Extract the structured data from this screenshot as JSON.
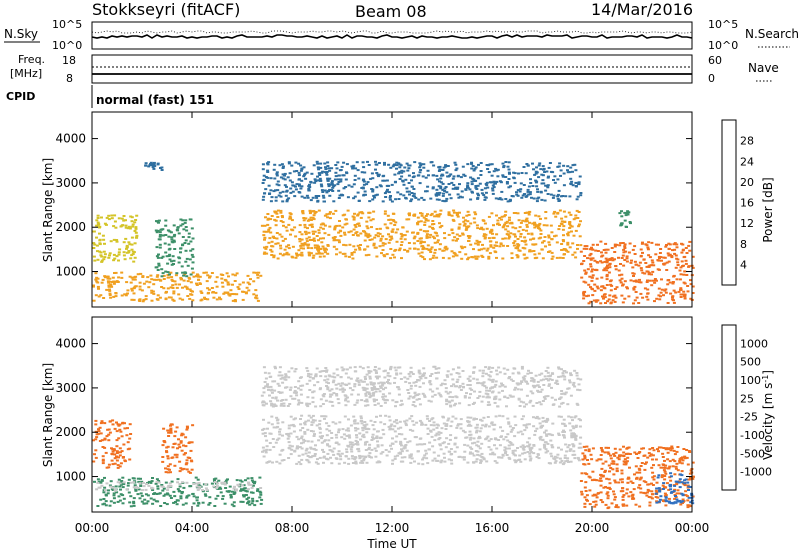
{
  "header": {
    "station": "Stokkseyri (fitACF)",
    "beam": "Beam 08",
    "date": "14/Mar/2016"
  },
  "nsky_panel": {
    "left_label": "N.Sky",
    "left_ticks": [
      "10^5",
      "10^0"
    ],
    "right_ticks": [
      "10^5",
      "10^0"
    ],
    "right_label": "N.Search"
  },
  "freq_panel": {
    "label_line1": "Freq.",
    "label_line2": "[MHz]",
    "left_ticks": [
      "18",
      "8"
    ],
    "right_ticks": [
      "60",
      "0"
    ],
    "right_label": "Nave"
  },
  "cpid": {
    "label": "CPID",
    "value": "normal (fast) 151"
  },
  "chart_data": [
    {
      "type": "heatmap",
      "quantity": "Power",
      "ylabel": "Slant Range [km]",
      "ylim": [
        200,
        4600
      ],
      "yticks": [
        "1000",
        "2000",
        "3000",
        "4000"
      ],
      "xlim": [
        "00:00",
        "24:00"
      ],
      "colorbar": {
        "label": "Power [dB]",
        "ticks": [
          "4",
          "8",
          "12",
          "16",
          "20",
          "24",
          "28"
        ],
        "colors": [
          "#1010f0",
          "#2a4fd0",
          "#2f6fa0",
          "#3c8f68",
          "#4aa848",
          "#d4c428",
          "#f0a020",
          "#f07020",
          "#e83018",
          "#e00000"
        ]
      },
      "echo_regions": [
        {
          "start": "00:00",
          "end": "06:45",
          "range_low": 350,
          "range_high": 1000,
          "value": 20
        },
        {
          "start": "00:00",
          "end": "01:45",
          "range_low": 1200,
          "range_high": 2300,
          "value": 16
        },
        {
          "start": "02:30",
          "end": "04:00",
          "range_low": 900,
          "range_high": 2200,
          "value": 12
        },
        {
          "start": "02:00",
          "end": "02:45",
          "range_low": 3300,
          "range_high": 3500,
          "value": 8
        },
        {
          "start": "06:45",
          "end": "19:30",
          "range_low": 1300,
          "range_high": 2400,
          "value": 20
        },
        {
          "start": "06:45",
          "end": "19:30",
          "range_low": 2600,
          "range_high": 3500,
          "value": 8
        },
        {
          "start": "19:30",
          "end": "24:00",
          "range_low": 300,
          "range_high": 1700,
          "value": 24
        },
        {
          "start": "21:00",
          "end": "21:30",
          "range_low": 2000,
          "range_high": 2400,
          "value": 12
        }
      ]
    },
    {
      "type": "heatmap",
      "quantity": "Velocity",
      "ylabel": "Slant Range [km]",
      "ylim": [
        200,
        4600
      ],
      "yticks": [
        "1000",
        "2000",
        "3000",
        "4000"
      ],
      "xlabel": "Time UT",
      "xticks": [
        "00:00",
        "04:00",
        "08:00",
        "12:00",
        "16:00",
        "20:00",
        "00:00"
      ],
      "colorbar": {
        "label": "Velocity [m s^-1]",
        "ticks": [
          "1000",
          "500",
          "100",
          "25",
          "-25",
          "-100",
          "-500",
          "-1000"
        ],
        "colors": [
          "#2040b0",
          "#3070c0",
          "#3c8f68",
          "#58c040",
          "#c8c8c8",
          "#c8c8c8",
          "#f0a020",
          "#f07020",
          "#e83018",
          "#e00000"
        ]
      },
      "echo_regions": [
        {
          "start": "00:00",
          "end": "06:45",
          "range_low": 350,
          "range_high": 1000,
          "value": 80
        },
        {
          "start": "00:00",
          "end": "06:45",
          "range_low": 700,
          "range_high": 900,
          "value": 0
        },
        {
          "start": "00:00",
          "end": "01:30",
          "range_low": 1200,
          "range_high": 2300,
          "value": -300
        },
        {
          "start": "02:45",
          "end": "04:00",
          "range_low": 1100,
          "range_high": 2200,
          "value": -300
        },
        {
          "start": "06:45",
          "end": "19:30",
          "range_low": 1300,
          "range_high": 2400,
          "value": 0
        },
        {
          "start": "06:45",
          "end": "19:30",
          "range_low": 2600,
          "range_high": 3500,
          "value": 0
        },
        {
          "start": "19:30",
          "end": "24:00",
          "range_low": 300,
          "range_high": 1700,
          "value": -300
        },
        {
          "start": "22:30",
          "end": "24:00",
          "range_low": 400,
          "range_high": 1100,
          "value": 300
        }
      ]
    }
  ]
}
